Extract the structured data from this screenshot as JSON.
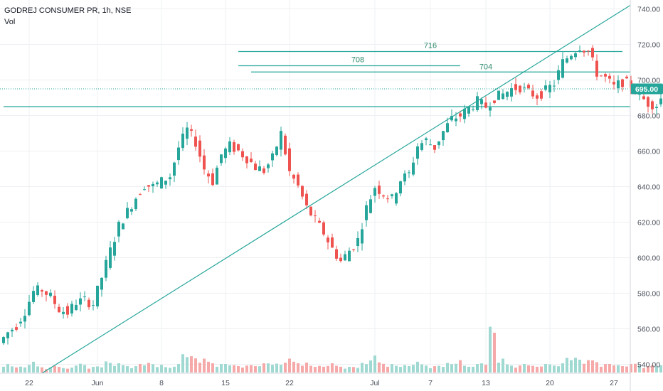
{
  "header": {
    "title": "GODREJ CONSUMER PR, 1h, NSE",
    "volume_label": "Vol"
  },
  "colors": {
    "up": "#26a69a",
    "down": "#ef5350",
    "vol_up": "#9fd9d2",
    "vol_down": "#f5a9a8",
    "line": "#26a69a",
    "price_tag": "#26a69a",
    "grid": "#eef0f3"
  },
  "chart_data": {
    "type": "candlestick",
    "symbol": "GODREJ CONSUMER PR",
    "interval": "1h",
    "exchange": "NSE",
    "ylim": [
      535,
      745
    ],
    "y_ticks": [
      "540.00",
      "560.00",
      "580.00",
      "600.00",
      "620.00",
      "640.00",
      "660.00",
      "680.00",
      "700.00",
      "720.00",
      "740.00"
    ],
    "x_ticks": [
      {
        "label": "22",
        "bar": 6
      },
      {
        "label": "Jun",
        "bar": 22
      },
      {
        "label": "8",
        "bar": 37
      },
      {
        "label": "15",
        "bar": 52
      },
      {
        "label": "22",
        "bar": 67
      },
      {
        "label": "Jul",
        "bar": 87
      },
      {
        "label": "7",
        "bar": 100
      },
      {
        "label": "13",
        "bar": 113
      },
      {
        "label": "20",
        "bar": 128
      },
      {
        "label": "27",
        "bar": 143
      }
    ],
    "current_price": "695.00",
    "current_price_value": 695,
    "horizontal_levels": [
      {
        "price": 716,
        "from_bar": 55,
        "to_bar": 145
      },
      {
        "price": 708,
        "from_bar": 55,
        "to_bar": 107
      },
      {
        "price": 704.5,
        "from_bar": 58,
        "to_bar": 151
      },
      {
        "price": 685,
        "from_bar": 0,
        "to_bar": 151
      }
    ],
    "level_annotations": [
      {
        "text": "716",
        "price": 716,
        "bar": 100
      },
      {
        "text": "708",
        "price": 708,
        "bar": 83
      },
      {
        "text": "704",
        "price": 704,
        "bar": 113
      }
    ],
    "trendline": {
      "start": {
        "bar": 9,
        "price": 535
      },
      "end": {
        "bar": 151,
        "price": 742
      }
    },
    "closes": [
      552,
      558,
      562,
      570,
      581,
      582,
      578,
      571,
      569,
      575,
      576,
      574,
      589,
      604,
      618,
      626,
      634,
      641,
      640,
      643,
      646,
      662,
      672,
      665,
      650,
      643,
      658,
      663,
      660,
      656,
      651,
      649,
      656,
      670,
      648,
      640,
      628,
      621,
      614,
      605,
      598,
      604,
      610,
      628,
      640,
      636,
      633,
      644,
      647,
      663,
      666,
      662,
      671,
      678,
      680,
      684,
      688,
      685,
      690,
      692,
      695,
      696,
      693,
      691,
      694,
      698,
      710,
      715,
      719,
      716,
      704,
      701,
      696,
      699,
      697,
      691,
      687,
      686,
      693,
      700,
      697,
      699,
      694,
      691,
      696,
      699,
      695,
      695
    ],
    "volume_max": 62,
    "volumes": [
      12,
      10,
      8,
      14,
      9,
      7,
      11,
      6,
      9,
      13,
      8,
      10,
      15,
      12,
      11,
      9,
      14,
      13,
      10,
      8,
      12,
      30,
      22,
      18,
      16,
      12,
      14,
      10,
      9,
      11,
      13,
      15,
      12,
      18,
      16,
      14,
      11,
      9,
      12,
      10,
      8,
      9,
      13,
      22,
      15,
      12,
      11,
      10,
      14,
      12,
      9,
      11,
      13,
      16,
      10,
      12,
      15,
      62,
      18,
      12,
      10,
      14,
      9,
      11,
      12,
      13,
      24,
      20,
      16,
      18,
      12,
      14,
      10,
      11,
      13,
      9,
      12,
      10,
      14,
      11,
      9,
      12,
      10,
      8,
      11,
      9,
      7,
      6
    ]
  }
}
